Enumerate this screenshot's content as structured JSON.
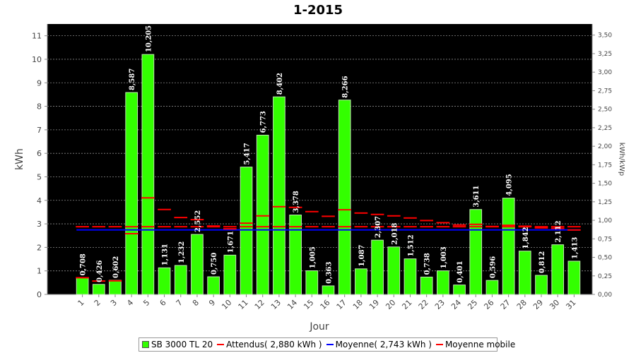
{
  "chart_data": {
    "type": "bar",
    "title": "1-2015",
    "xlabel": "Jour",
    "ylabel": "kWh",
    "y2label": "kWh/kWp",
    "ylim": [
      0,
      11.5
    ],
    "y2lim": [
      0,
      3.65
    ],
    "categories": [
      "1",
      "2",
      "3",
      "4",
      "5",
      "6",
      "7",
      "8",
      "9",
      "10",
      "11",
      "12",
      "13",
      "14",
      "15",
      "16",
      "17",
      "18",
      "19",
      "20",
      "21",
      "22",
      "23",
      "24",
      "25",
      "26",
      "27",
      "28",
      "29",
      "30",
      "31"
    ],
    "value_labels": [
      "0,708",
      "0,426",
      "0,602",
      "8,587",
      "10,205",
      "1,131",
      "1,232",
      "2,552",
      "0,750",
      "1,671",
      "5,417",
      "6,773",
      "8,402",
      "3,378",
      "1,005",
      "0,363",
      "8,266",
      "1,087",
      "2,307",
      "2,018",
      "1,512",
      "0,738",
      "1,003",
      "0,401",
      "3,611",
      "0,596",
      "4,095",
      "1,842",
      "0,812",
      "2,112",
      "1,413"
    ],
    "y_ticks": [
      "0",
      "1",
      "2",
      "3",
      "4",
      "5",
      "6",
      "7",
      "8",
      "9",
      "10",
      "11"
    ],
    "y2_ticks": [
      "0,00",
      "0,25",
      "0,50",
      "0,75",
      "1,00",
      "1,25",
      "1,50",
      "1,75",
      "2,00",
      "2,25",
      "2,50",
      "2,75",
      "3,00",
      "3,25",
      "3,50"
    ],
    "series": [
      {
        "name": "SB 3000 TL 20",
        "kind": "bar",
        "color": "#33ff00",
        "values": [
          0.708,
          0.426,
          0.602,
          8.587,
          10.205,
          1.131,
          1.232,
          2.552,
          0.75,
          1.671,
          5.417,
          6.773,
          8.402,
          3.378,
          1.005,
          0.363,
          8.266,
          1.087,
          2.307,
          2.018,
          1.512,
          0.738,
          1.003,
          0.401,
          3.611,
          0.596,
          4.095,
          1.842,
          0.812,
          2.112,
          1.413
        ]
      },
      {
        "name": "Attendus( 2,880 kWh )",
        "kind": "hline",
        "color": "#ff0000",
        "values": [
          2.88,
          2.88,
          2.88,
          2.88,
          2.88,
          2.88,
          2.88,
          2.88,
          2.88,
          2.88,
          2.88,
          2.88,
          2.88,
          2.88,
          2.88,
          2.88,
          2.88,
          2.88,
          2.88,
          2.88,
          2.88,
          2.88,
          2.88,
          2.88,
          2.88,
          2.88,
          2.88,
          2.88,
          2.88,
          2.88,
          2.88
        ]
      },
      {
        "name": "Moyenne( 2,743 kWh )",
        "kind": "line",
        "color": "#0000ff",
        "values": [
          2.743,
          2.743,
          2.743,
          2.743,
          2.743,
          2.743,
          2.743,
          2.743,
          2.743,
          2.743,
          2.743,
          2.743,
          2.743,
          2.743,
          2.743,
          2.743,
          2.743,
          2.743,
          2.743,
          2.743,
          2.743,
          2.743,
          2.743,
          2.743,
          2.743,
          2.743,
          2.743,
          2.743,
          2.743,
          2.743,
          2.743
        ]
      },
      {
        "name": "Moyenne mobile",
        "kind": "step",
        "color": "#ff0000",
        "values": [
          0.708,
          0.567,
          0.579,
          2.581,
          4.106,
          3.61,
          3.27,
          3.18,
          2.91,
          2.79,
          3.03,
          3.34,
          3.73,
          3.7,
          3.52,
          3.32,
          3.6,
          3.46,
          3.4,
          3.34,
          3.25,
          3.14,
          3.05,
          2.95,
          2.98,
          2.89,
          2.94,
          2.9,
          2.83,
          2.81,
          2.74
        ]
      }
    ],
    "background": "#000000",
    "grid": true,
    "legend_position": "bottom"
  }
}
